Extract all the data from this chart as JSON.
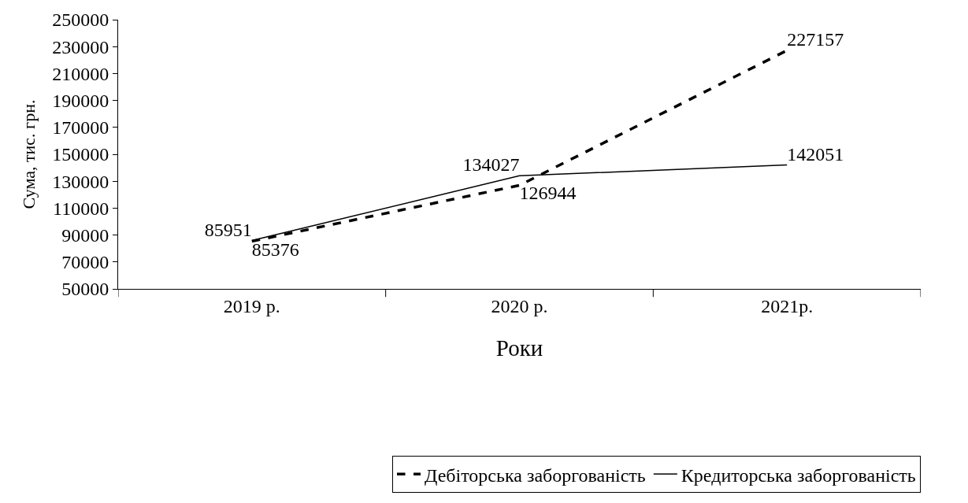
{
  "chart_data": {
    "type": "line",
    "xlabel": "Роки",
    "ylabel": "Сума, тис. грн.",
    "categories": [
      "2019 р.",
      "2020 р.",
      "2021р."
    ],
    "series": [
      {
        "name": "Дебіторська заборгованість",
        "color": "#000000",
        "line_style": "dashed",
        "values": [
          85376,
          126944,
          227157
        ]
      },
      {
        "name": "Кредиторська заборгованість",
        "color": "#000000",
        "line_style": "solid",
        "values": [
          85951,
          134027,
          142051
        ]
      }
    ],
    "ylim": [
      50000,
      250000
    ],
    "yticks": [
      50000,
      70000,
      90000,
      110000,
      130000,
      150000,
      170000,
      190000,
      210000,
      230000,
      250000
    ],
    "data_labels": true,
    "legend": "bottom",
    "marker": "none"
  }
}
